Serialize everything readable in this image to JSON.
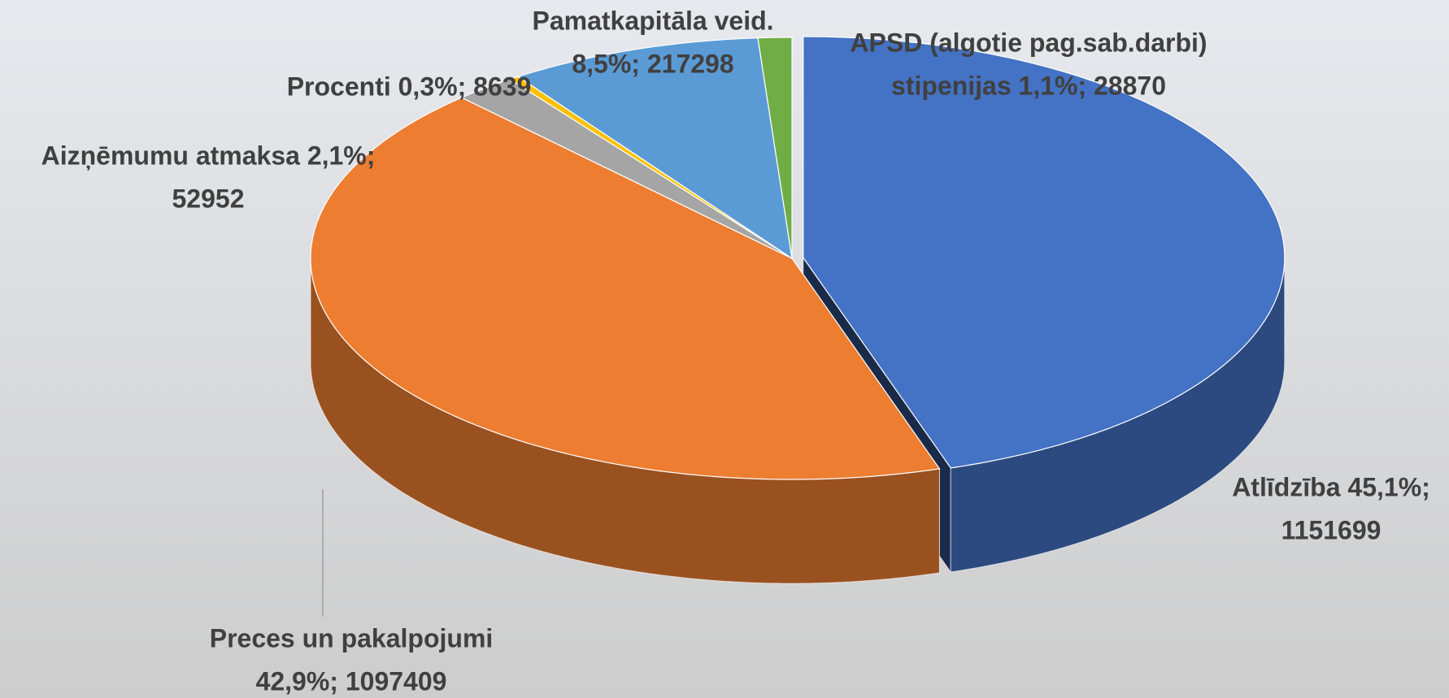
{
  "chart_data": {
    "type": "pie3d",
    "values": [
      1151699,
      1097409,
      52952,
      8639,
      217298,
      28870
    ],
    "colors": [
      "#4472c4",
      "#ed7d31",
      "#a5a5a5",
      "#ffc000",
      "#5b9bd5",
      "#70ad47"
    ],
    "labels": [
      [
        "Atlīdzība 45,1%;",
        "1151699"
      ],
      [
        "Preces un pakalpojumi",
        "42,9%; 1097409"
      ],
      [
        "Aizņēmumu atmaksa 2,1%;",
        "52952"
      ],
      [
        "Procenti 0,3%; 8639"
      ],
      [
        "Pamatkapitāla veid.",
        "8,5%; 217298"
      ],
      [
        "APSD (algotie pag.sab.darbi)",
        "stipenijas  1,1%; 28870"
      ]
    ]
  }
}
